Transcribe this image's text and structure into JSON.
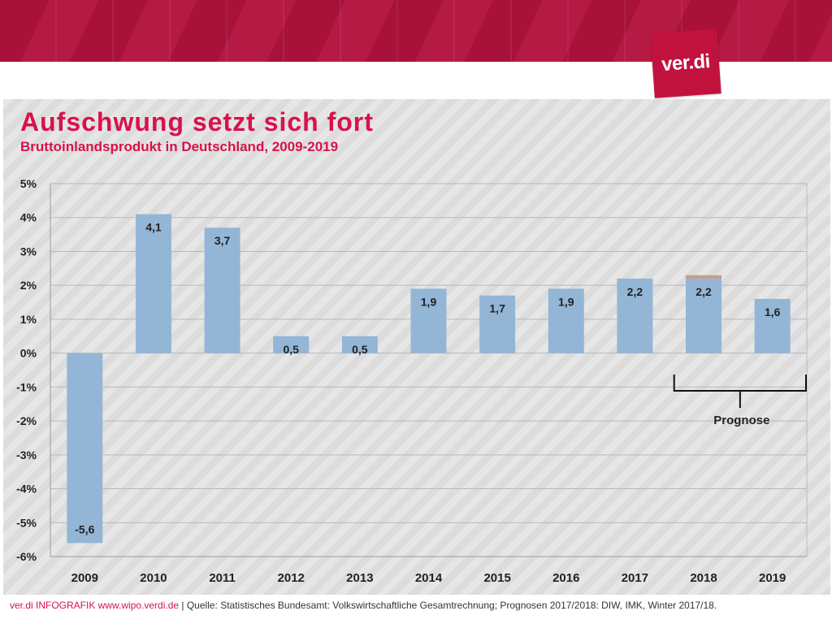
{
  "header": {
    "logo_text": "ver.di",
    "title": "Aufschwung setzt sich fort",
    "subtitle": "Bruttoinlandsprodukt in Deutschland, 2009-2019"
  },
  "chart_data": {
    "type": "bar",
    "categories": [
      "2009",
      "2010",
      "2011",
      "2012",
      "2013",
      "2014",
      "2015",
      "2016",
      "2017",
      "2018",
      "2019"
    ],
    "values": [
      -5.6,
      4.1,
      3.7,
      0.5,
      0.5,
      1.9,
      1.7,
      1.9,
      2.2,
      2.2,
      1.6
    ],
    "data_labels": [
      "-5,6",
      "4,1",
      "3,7",
      "0,5",
      "0,5",
      "1,9",
      "1,7",
      "1,9",
      "2,2",
      "2,2",
      "1,6"
    ],
    "y_ticks": [
      5,
      4,
      3,
      2,
      1,
      0,
      -1,
      -2,
      -3,
      -4,
      -5,
      -6
    ],
    "y_tick_labels": [
      "5%",
      "4%",
      "3%",
      "2%",
      "1%",
      "0%",
      "-1%",
      "-2%",
      "-3%",
      "-4%",
      "-5%",
      "-6%"
    ],
    "ylim": [
      -6,
      5
    ],
    "grid": true,
    "bar_color": "#93b6d6",
    "overlay": {
      "category": "2018",
      "value": 2.3,
      "color": "#c3a08a"
    },
    "annotation": {
      "label": "Prognose",
      "from": "2018",
      "to": "2019"
    }
  },
  "footer": {
    "brand": "ver.di INFOGRAFIK www.wipo.verdi.de",
    "source": " | Quelle: Statistisches Bundesamt: Volkswirtschaftliche Gesamtrechnung; Prognosen 2017/2018: DIW, IMK, Winter 2017/18."
  }
}
